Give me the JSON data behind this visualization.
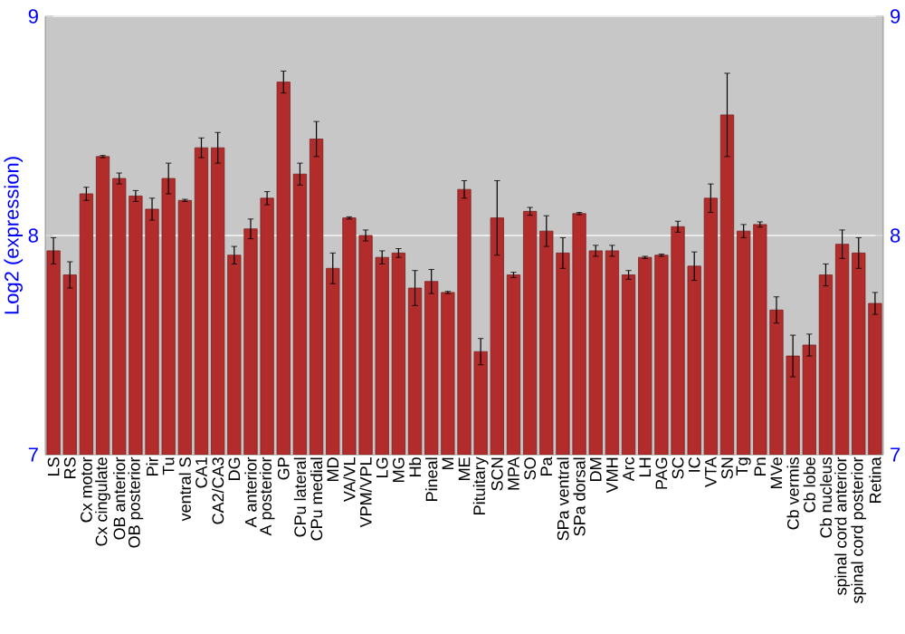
{
  "chart_data": {
    "type": "bar",
    "ylabel": "Log2 (expression)",
    "categories": [
      "LS",
      "RS",
      "Cx motor",
      "Cx cingulate",
      "OB anterior",
      "OB posterior",
      "Pir",
      "Tu",
      "ventral S",
      "CA1",
      "CA2/CA3",
      "DG",
      "A anterior",
      "A posterior",
      "GP",
      "CPu lateral",
      "CPu medial",
      "MD",
      "VA/VL",
      "VPM/VPL",
      "LG",
      "MG",
      "Hb",
      "Pineal",
      "M",
      "ME",
      "Pituitary",
      "SCN",
      "MPA",
      "SO",
      "Pa",
      "SPa ventral",
      "SPa dorsal",
      "DM",
      "VMH",
      "Arc",
      "LH",
      "PAG",
      "SC",
      "IC",
      "VTA",
      "SN",
      "Tg",
      "Pn",
      "MVe",
      "Cb vermis",
      "Cb lobe",
      "Cb nucleus",
      "spinal cord anterior",
      "spinal cord posterior",
      "Retina"
    ],
    "values": [
      7.93,
      7.82,
      8.19,
      8.36,
      8.26,
      8.18,
      8.12,
      8.26,
      8.16,
      8.4,
      8.4,
      7.91,
      8.03,
      8.17,
      8.7,
      8.28,
      8.44,
      7.85,
      8.08,
      8.0,
      7.9,
      7.92,
      7.76,
      7.79,
      7.74,
      8.21,
      7.47,
      8.08,
      7.82,
      8.11,
      8.02,
      7.92,
      8.1,
      7.93,
      7.93,
      7.82,
      7.9,
      7.91,
      8.04,
      7.86,
      8.17,
      8.55,
      8.02,
      8.05,
      7.66,
      7.45,
      7.5,
      7.82,
      7.96,
      7.92,
      7.69
    ],
    "errors": [
      0.06,
      0.06,
      0.03,
      0.005,
      0.025,
      0.025,
      0.05,
      0.07,
      0.005,
      0.045,
      0.07,
      0.04,
      0.045,
      0.03,
      0.05,
      0.05,
      0.08,
      0.07,
      0.005,
      0.025,
      0.03,
      0.02,
      0.08,
      0.055,
      0.005,
      0.04,
      0.06,
      0.17,
      0.012,
      0.018,
      0.07,
      0.07,
      0.005,
      0.025,
      0.025,
      0.02,
      0.005,
      0.005,
      0.025,
      0.065,
      0.065,
      0.19,
      0.03,
      0.012,
      0.06,
      0.095,
      0.05,
      0.05,
      0.065,
      0.07,
      0.05
    ],
    "color": "#b22c2c",
    "ylim": [
      7,
      9
    ],
    "yticks": [
      7,
      8,
      9
    ],
    "y2lim": [
      7,
      9
    ],
    "y2ticks": [
      7,
      8,
      9
    ],
    "grid": "y"
  }
}
